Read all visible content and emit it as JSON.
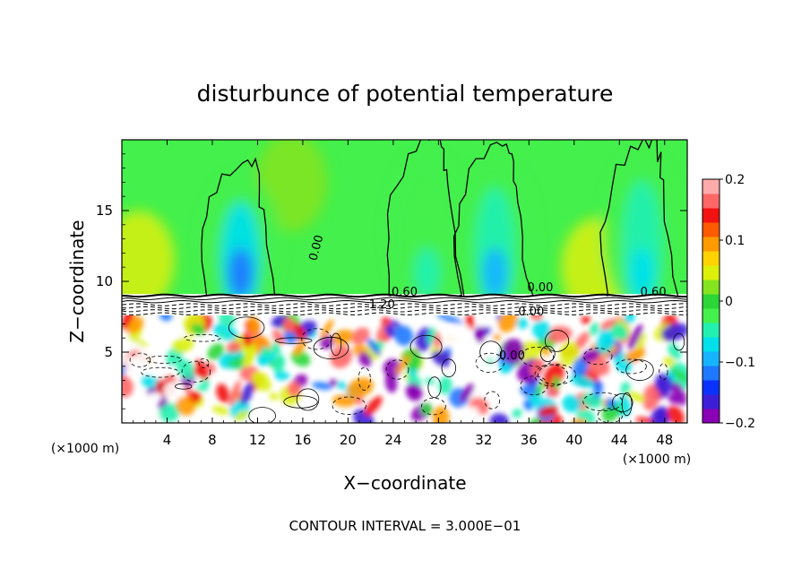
{
  "chart_data": {
    "type": "heatmap",
    "title": "disturbunce of potential temperature",
    "xlabel": "X−coordinate",
    "ylabel": "Z−coordinate",
    "x_unit_left": "(×1000 m)",
    "x_unit_right": "(×1000 m)",
    "footer": "CONTOUR INTERVAL = 3.000E−01",
    "xlim": [
      0,
      50
    ],
    "ylim": [
      0,
      20
    ],
    "x_ticks": [
      4,
      8,
      12,
      16,
      20,
      24,
      28,
      32,
      36,
      40,
      44,
      48
    ],
    "y_ticks": [
      5,
      10,
      15
    ],
    "colorbar": {
      "min": -0.2,
      "max": 0.2,
      "ticks": [
        0.2,
        0.1,
        0,
        -0.1,
        -0.2
      ],
      "tick_labels": [
        "0.2",
        "0.1",
        "0",
        "−0.1",
        "−0.2"
      ],
      "colors": [
        "#8a00b5",
        "#3d1ed8",
        "#0a32ff",
        "#1e78ff",
        "#16b4ff",
        "#00e0ea",
        "#22f0b0",
        "#44f04c",
        "#2ad638",
        "#84e41e",
        "#dcf00a",
        "#ffd200",
        "#ff9a00",
        "#ff5a00",
        "#f21212",
        "#ff6666",
        "#ffaaaa"
      ]
    },
    "contour_labels": [
      {
        "text": "0.00",
        "x": 17.5,
        "z": 12.3,
        "rotate": -75
      },
      {
        "text": "0.60",
        "x": 25.0,
        "z": 9.0,
        "rotate": 0
      },
      {
        "text": "1.20",
        "x": 23.0,
        "z": 8.1,
        "rotate": 0
      },
      {
        "text": "0.00",
        "x": 37.0,
        "z": 9.3,
        "rotate": 0
      },
      {
        "text": "0.00",
        "x": 36.2,
        "z": 7.6,
        "rotate": 0
      },
      {
        "text": "0.00",
        "x": 34.5,
        "z": 4.5,
        "rotate": 0
      },
      {
        "text": "0.60",
        "x": 47.0,
        "z": 9.0,
        "rotate": 0
      }
    ],
    "fields": {
      "background_value": 0.02,
      "upper_layer": {
        "z_bottom": 9.0,
        "z_top": 20.0
      },
      "inversion_band": {
        "z_bottom": 7.6,
        "z_top": 9.1
      },
      "lower_layer": {
        "z_bottom": 0.0,
        "z_top": 7.6
      },
      "plumes": [
        {
          "x": 10.5,
          "z": 12.5,
          "value": -0.07
        },
        {
          "x": 27.0,
          "z": 14.0,
          "value": -0.03
        },
        {
          "x": 33.0,
          "z": 13.5,
          "value": -0.05
        },
        {
          "x": 46.0,
          "z": 14.0,
          "value": -0.04
        }
      ],
      "warm_spots": [
        {
          "x": 1.5,
          "z": 11.5,
          "value": 0.05
        },
        {
          "x": 15.0,
          "z": 17.0,
          "value": 0.03
        },
        {
          "x": 42.0,
          "z": 11.0,
          "value": 0.04
        }
      ]
    }
  }
}
